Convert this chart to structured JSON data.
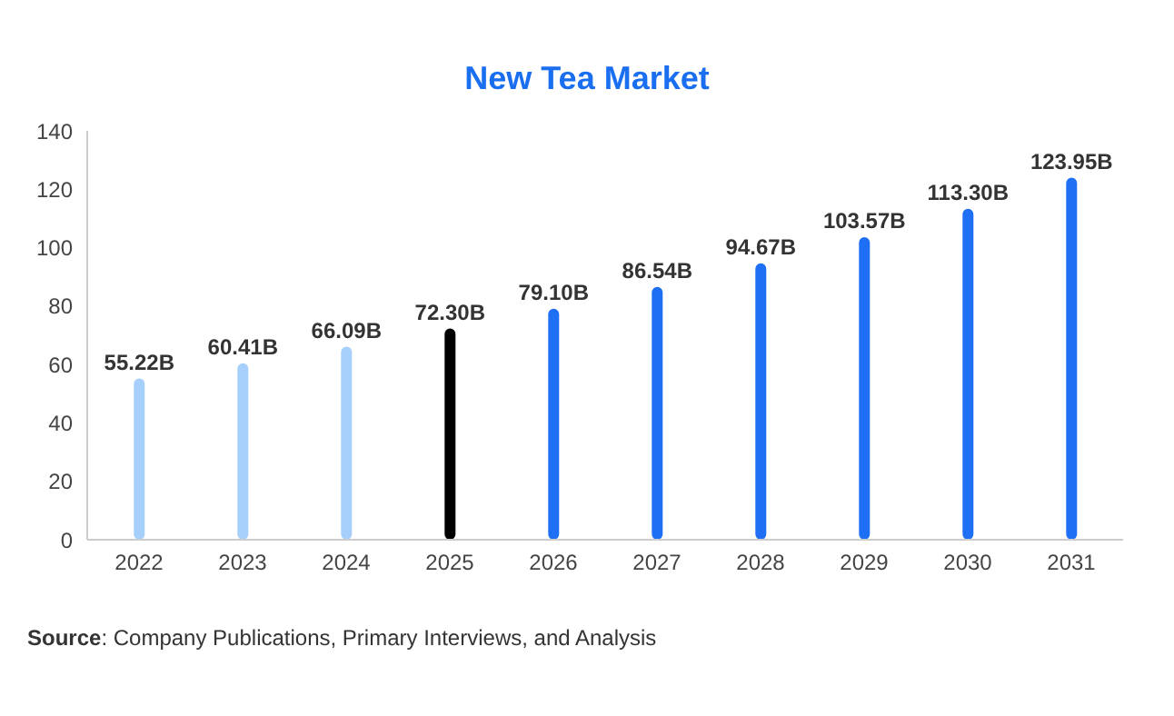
{
  "chart_data": {
    "type": "bar",
    "title": "New Tea Market",
    "categories": [
      "2022",
      "2023",
      "2024",
      "2025",
      "2026",
      "2027",
      "2028",
      "2029",
      "2030",
      "2031"
    ],
    "values": [
      55.22,
      60.41,
      66.09,
      72.3,
      79.1,
      86.54,
      94.67,
      103.57,
      113.3,
      123.95
    ],
    "value_labels": [
      "55.22B",
      "60.41B",
      "66.09B",
      "72.30B",
      "79.10B",
      "86.54B",
      "94.67B",
      "103.57B",
      "113.30B",
      "123.95B"
    ],
    "colors": [
      "#a6d0fb",
      "#a6d0fb",
      "#a6d0fb",
      "#000000",
      "#1f6ff5",
      "#1f6ff5",
      "#1f6ff5",
      "#1f6ff5",
      "#1f6ff5",
      "#1f6ff5"
    ],
    "ylim": [
      0,
      140
    ],
    "yticks": [
      0,
      20,
      40,
      60,
      80,
      100,
      120,
      140
    ],
    "grid": false,
    "annotations": [
      "Source: Company Publications, Primary Interviews, and Analysis"
    ]
  }
}
